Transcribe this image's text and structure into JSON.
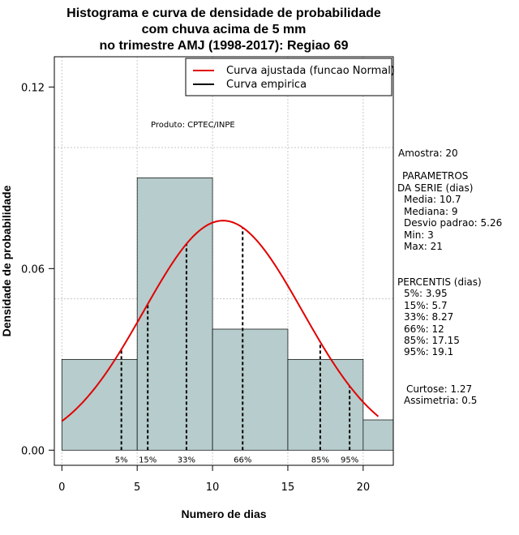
{
  "title_lines": [
    "Histograma e curva de densidade de probabilidade",
    "com chuva acima de 5 mm",
    "no trimestre AMJ (1998-2017): Regiao 69"
  ],
  "chart_data": {
    "type": "bar",
    "subtype": "histogram",
    "xlabel": "Numero de dias",
    "ylabel": "Densidade de probabilidade",
    "xlim": [
      -0.5,
      22
    ],
    "ylim": [
      -0.005,
      0.13
    ],
    "x_ticks": [
      0,
      5,
      10,
      15,
      20
    ],
    "x_tick_labels": [
      "0",
      "5",
      "10",
      "15",
      "20"
    ],
    "y_ticks": [
      0.0,
      0.06,
      0.12
    ],
    "y_tick_labels": [
      "0.00",
      "0.06",
      "0.12"
    ],
    "grid": true,
    "x_grid_values": [
      0,
      5,
      10,
      15,
      20
    ],
    "y_grid_values": [
      0.05,
      0.1
    ],
    "bins": [
      {
        "from": 0,
        "to": 5,
        "density": 0.03
      },
      {
        "from": 5,
        "to": 10,
        "density": 0.09
      },
      {
        "from": 10,
        "to": 15,
        "density": 0.04
      },
      {
        "from": 15,
        "to": 20,
        "density": 0.03
      },
      {
        "from": 20,
        "to": 22,
        "density": 0.01
      }
    ],
    "bar_color": "#b7cccc",
    "normal_curve": {
      "mean": 10.7,
      "sd": 5.26,
      "from": 0,
      "to": 21,
      "color": "#e00000"
    },
    "percentiles": [
      {
        "label": "5%",
        "x": 3.95
      },
      {
        "label": "15%",
        "x": 5.7
      },
      {
        "label": "33%",
        "x": 8.27
      },
      {
        "label": "66%",
        "x": 12
      },
      {
        "label": "85%",
        "x": 17.15
      },
      {
        "label": "95%",
        "x": 19.1
      }
    ],
    "legend": [
      {
        "label": "Curva ajustada (funcao Normal)",
        "color": "#e00000"
      },
      {
        "label": "Curva empirica",
        "color": "#000000"
      }
    ],
    "legend_position": "top-right",
    "annotation": "Produto: CPTEC/INPE"
  },
  "side_panel": {
    "amostra": "Amostra: 20",
    "param_header": [
      "PARAMETROS",
      "DA SERIE (dias)"
    ],
    "params": [
      "Media: 10.7",
      "Mediana: 9",
      "Desvio padrao: 5.26",
      "Min: 3",
      "Max: 21"
    ],
    "perc_header": "PERCENTIS (dias)",
    "percentis": [
      "5%: 3.95",
      "15%: 5.7",
      "33%: 8.27",
      "66%: 12",
      "85%: 17.15",
      "95%: 19.1"
    ],
    "curtose": "Curtose: 1.27",
    "assimetria": "Assimetria: 0.5"
  }
}
